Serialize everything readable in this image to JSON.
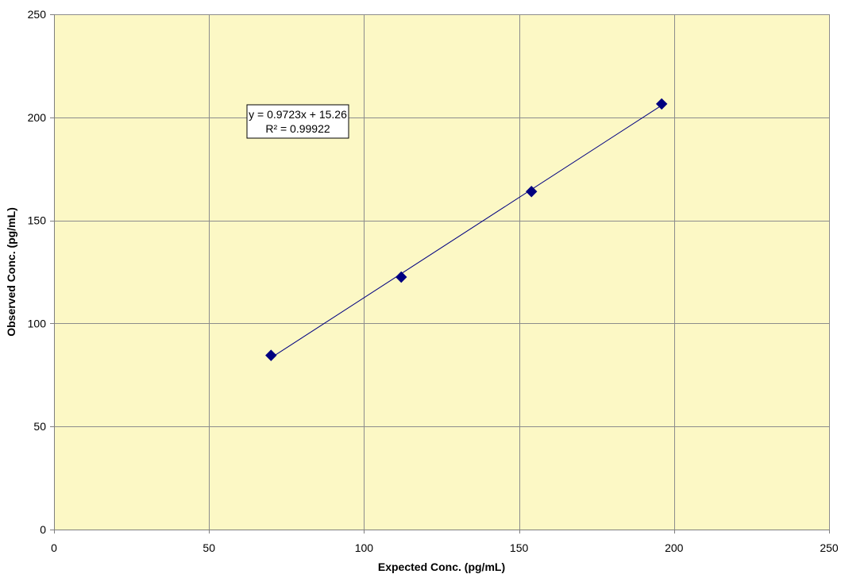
{
  "chart_data": {
    "type": "scatter",
    "title": "",
    "xlabel": "Expected Conc. (pg/mL)",
    "ylabel": "Observed Conc. (pg/mL)",
    "xlim": [
      0,
      250
    ],
    "ylim": [
      0,
      250
    ],
    "x_ticks": [
      0,
      50,
      100,
      150,
      200,
      250
    ],
    "y_ticks": [
      0,
      50,
      100,
      150,
      200,
      250
    ],
    "grid": true,
    "legend": "none",
    "series": [
      {
        "x": [
          70,
          112,
          154,
          196
        ],
        "y": [
          84.5,
          122.5,
          164,
          206.5
        ],
        "marker": "diamond",
        "color": "#000080"
      }
    ],
    "trendline": {
      "type": "linear",
      "slope": 0.9723,
      "intercept": 15.26,
      "x_range": [
        70,
        196
      ],
      "color": "#000080"
    },
    "annotations": {
      "equation": "y = 0.9723x + 15.26",
      "r_squared": "R² = 0.99922"
    },
    "colors": {
      "plot_background": "#fcf8c5",
      "gridline": "#8c8c8c",
      "marker": "#000080"
    }
  }
}
